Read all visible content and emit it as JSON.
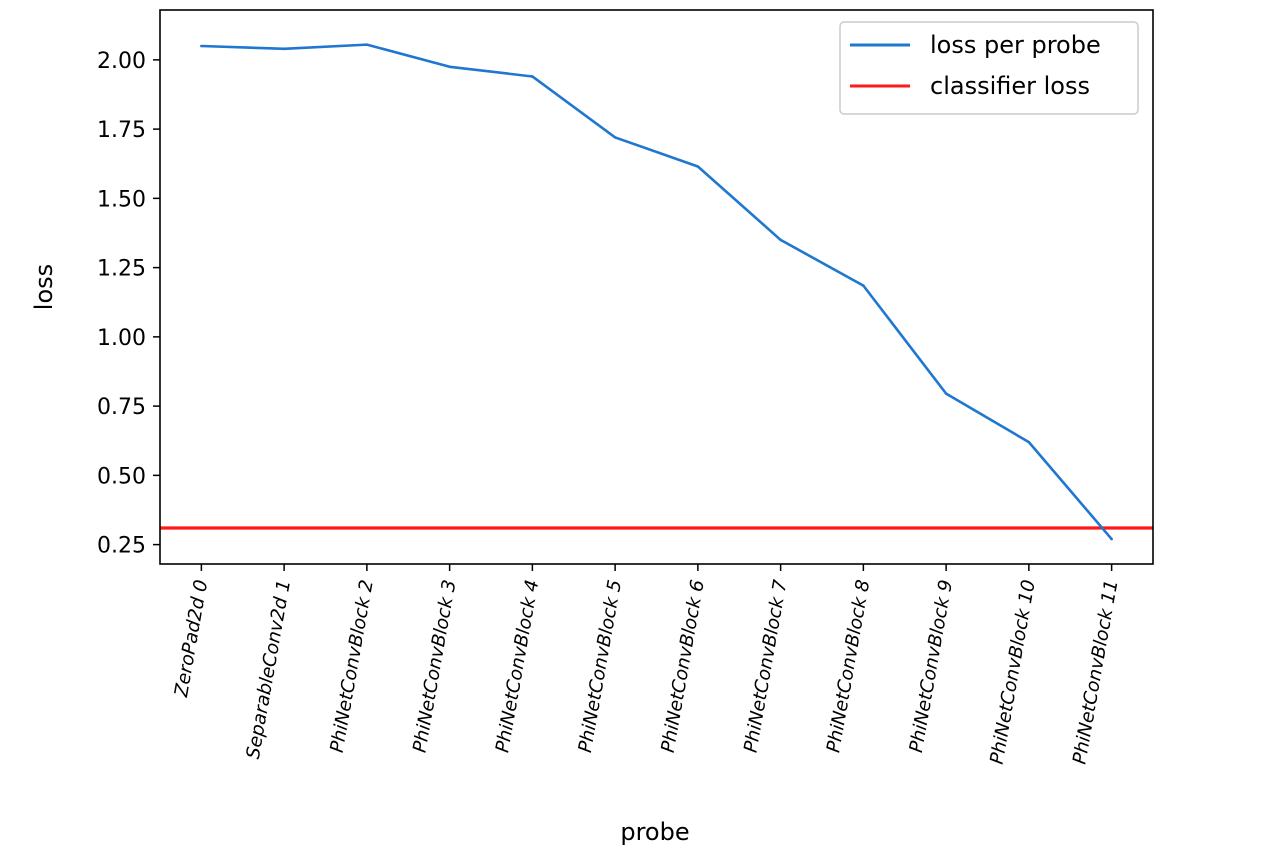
{
  "chart_data": {
    "type": "line",
    "xlabel": "probe",
    "ylabel": "loss",
    "categories": [
      "ZeroPad2d 0",
      "SeparableConv2d 1",
      "PhiNetConvBlock 2",
      "PhiNetConvBlock 3",
      "PhiNetConvBlock 4",
      "PhiNetConvBlock 5",
      "PhiNetConvBlock 6",
      "PhiNetConvBlock 7",
      "PhiNetConvBlock 8",
      "PhiNetConvBlock 9",
      "PhiNetConvBlock 10",
      "PhiNetConvBlock 11"
    ],
    "series": [
      {
        "name": "loss per probe",
        "color": "#1f77d0",
        "values": [
          2.05,
          2.04,
          2.055,
          1.975,
          1.94,
          1.72,
          1.615,
          1.35,
          1.185,
          0.795,
          0.62,
          0.27
        ]
      }
    ],
    "hlines": [
      {
        "name": "classifier loss",
        "color": "#ff1a1a",
        "value": 0.31
      }
    ],
    "ylim": [
      0.18,
      2.18
    ],
    "yticks": [
      0.25,
      0.5,
      0.75,
      1.0,
      1.25,
      1.5,
      1.75,
      2.0
    ],
    "ytick_labels": [
      "0.25",
      "0.50",
      "0.75",
      "1.00",
      "1.25",
      "1.50",
      "1.75",
      "2.00"
    ],
    "grid": false,
    "legend_position": "top-right"
  }
}
